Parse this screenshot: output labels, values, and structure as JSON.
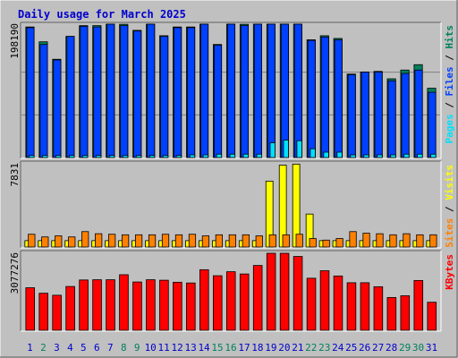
{
  "chart_data": {
    "title": "Daily usage for March 2025",
    "days": [
      "1",
      "2",
      "3",
      "4",
      "5",
      "6",
      "7",
      "8",
      "9",
      "10",
      "11",
      "12",
      "13",
      "14",
      "15",
      "16",
      "17",
      "18",
      "19",
      "20",
      "21",
      "22",
      "23",
      "24",
      "25",
      "26",
      "27",
      "28",
      "29",
      "30",
      "31"
    ],
    "weekend_days": [
      "2",
      "8",
      "9",
      "15",
      "16",
      "22",
      "23",
      "29",
      "30"
    ],
    "colors": {
      "background": "#c0c0c0",
      "title": "#0000cc",
      "hits": "#00805c",
      "files": "#0040ff",
      "pages": "#00e0ff",
      "sites": "#ff8000",
      "visits": "#ffff00",
      "kbytes": "#ff0000",
      "weekday_label": "#0000cc",
      "weekend_label": "#00805c"
    },
    "panels": [
      {
        "id": "hits-files-pages",
        "type": "bar",
        "ymax_label": "198190",
        "ymax": 198190,
        "side_labels": [
          {
            "text": "Pages",
            "color": "#00e0ff"
          },
          {
            "text": " / ",
            "color": "#000000"
          },
          {
            "text": "Files",
            "color": "#0040ff"
          },
          {
            "text": " / ",
            "color": "#000000"
          },
          {
            "text": "Hits",
            "color": "#00805c"
          }
        ],
        "series": [
          {
            "name": "Hits",
            "color": "#00805c",
            "values": [
              194000,
              172000,
              146000,
              180000,
              196000,
              196000,
              199000,
              198000,
              189000,
              201000,
              181000,
              194000,
              194000,
              199000,
              168000,
              201000,
              198000,
              202000,
              203000,
              203000,
              203000,
              175000,
              181000,
              177000,
              124000,
              127000,
              128000,
              117000,
              130000,
              138000,
              103000
            ]
          },
          {
            "name": "Files",
            "color": "#0040ff",
            "values": [
              193000,
              168000,
              145000,
              180000,
              195000,
              194000,
              199000,
              196000,
              188000,
              201000,
              180000,
              193000,
              193000,
              199000,
              167000,
              201000,
              196000,
              200000,
              203000,
              202000,
              201000,
              174000,
              179000,
              175000,
              123000,
              127000,
              127000,
              114000,
              125000,
              130000,
              97000
            ]
          },
          {
            "name": "Pages",
            "color": "#00e0ff",
            "values": [
              3000,
              3000,
              3000,
              3000,
              3000,
              3000,
              3000,
              3000,
              3000,
              3000,
              3000,
              3000,
              4000,
              4000,
              5000,
              5000,
              5000,
              5000,
              22000,
              26000,
              25000,
              13000,
              8000,
              8000,
              4000,
              4000,
              4000,
              4000,
              5000,
              5000,
              5000
            ]
          }
        ]
      },
      {
        "id": "visits-sites",
        "type": "bar",
        "ymax_label": "7831",
        "ymax": 7831,
        "side_labels": [
          {
            "text": "Sites",
            "color": "#ff8000"
          },
          {
            "text": " / ",
            "color": "#000000"
          },
          {
            "text": "Visits",
            "color": "#ffff00"
          }
        ],
        "series": [
          {
            "name": "Visits",
            "color": "#ffff00",
            "values": [
              600,
              600,
              600,
              600,
              600,
              600,
              600,
              600,
              600,
              600,
              600,
              600,
              600,
              600,
              600,
              600,
              600,
              600,
              6200,
              7700,
              7800,
              3100,
              600,
              600,
              600,
              600,
              600,
              600,
              600,
              600,
              600
            ]
          },
          {
            "name": "Sites",
            "color": "#ff8000",
            "values": [
              1200,
              950,
              1050,
              950,
              1450,
              1250,
              1200,
              1150,
              1150,
              1150,
              1200,
              1150,
              1200,
              1050,
              1150,
              1150,
              1150,
              1050,
              1150,
              1150,
              1200,
              800,
              650,
              800,
              1450,
              1300,
              1250,
              1150,
              1250,
              1150,
              1150
            ]
          }
        ]
      },
      {
        "id": "kbytes",
        "type": "bar",
        "ymax_label": "3077276",
        "ymax": 3077276,
        "side_labels": [
          {
            "text": "KBytes",
            "color": "#ff0000"
          }
        ],
        "series": [
          {
            "name": "KBytes",
            "color": "#ff0000",
            "values": [
              1700000,
              1480000,
              1400000,
              1750000,
              2010000,
              2020000,
              2020000,
              2220000,
              1930000,
              2020000,
              2000000,
              1920000,
              1890000,
              2420000,
              2180000,
              2340000,
              2250000,
              2590000,
              3077000,
              3077000,
              2950000,
              2080000,
              2380000,
              2170000,
              1900000,
              1900000,
              1740000,
              1310000,
              1380000,
              1990000,
              1120000
            ]
          }
        ]
      }
    ]
  }
}
